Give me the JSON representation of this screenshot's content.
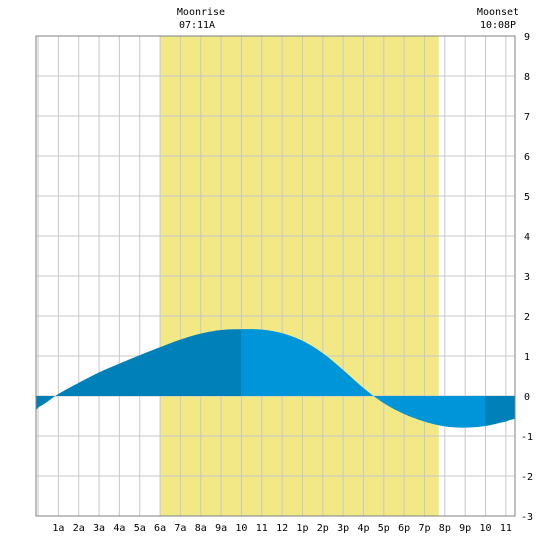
{
  "chart_data": {
    "type": "area",
    "moon": {
      "rise_label": "Moonrise",
      "rise_time": "07:11A",
      "set_label": "Moonset",
      "set_time": "10:08P"
    },
    "x_tick_labels": [
      "1a",
      "2a",
      "3a",
      "4a",
      "5a",
      "6a",
      "7a",
      "8a",
      "9a",
      "10",
      "11",
      "12",
      "1p",
      "2p",
      "3p",
      "4p",
      "5p",
      "6p",
      "7p",
      "8p",
      "9p",
      "10",
      "11"
    ],
    "y_tick_labels": [
      "-3",
      "-2",
      "-1",
      "0",
      "1",
      "2",
      "3",
      "4",
      "5",
      "6",
      "7",
      "8",
      "9"
    ],
    "xlim": [
      -0.1,
      23.45
    ],
    "ylim": [
      -3,
      9
    ],
    "daylight_hours": [
      6.0,
      19.7
    ],
    "tide": {
      "x": [
        -0.1,
        0.0,
        1.0,
        2.0,
        3.0,
        4.0,
        5.0,
        6.0,
        7.0,
        8.0,
        9.0,
        10.0,
        11.0,
        12.0,
        13.0,
        14.0,
        15.0,
        16.0,
        17.0,
        18.0,
        19.0,
        20.0,
        21.0,
        22.0,
        23.0,
        23.45
      ],
      "y": [
        -0.35,
        -0.28,
        0.05,
        0.33,
        0.59,
        0.81,
        1.02,
        1.22,
        1.41,
        1.56,
        1.65,
        1.67,
        1.66,
        1.57,
        1.38,
        1.07,
        0.65,
        0.2,
        -0.18,
        -0.45,
        -0.64,
        -0.76,
        -0.79,
        -0.75,
        -0.64,
        -0.57
      ]
    },
    "dark_segments": [
      [
        -0.1,
        10.0
      ],
      [
        22.0,
        23.45
      ]
    ],
    "light_segments": [
      [
        10.0,
        22.0
      ]
    ],
    "colors": {
      "background": "#ffffff",
      "daylight": "#f2e886",
      "grid": "#c8c8c8",
      "tide_dark": "#0080b8",
      "tide_light": "#0094d8"
    }
  }
}
